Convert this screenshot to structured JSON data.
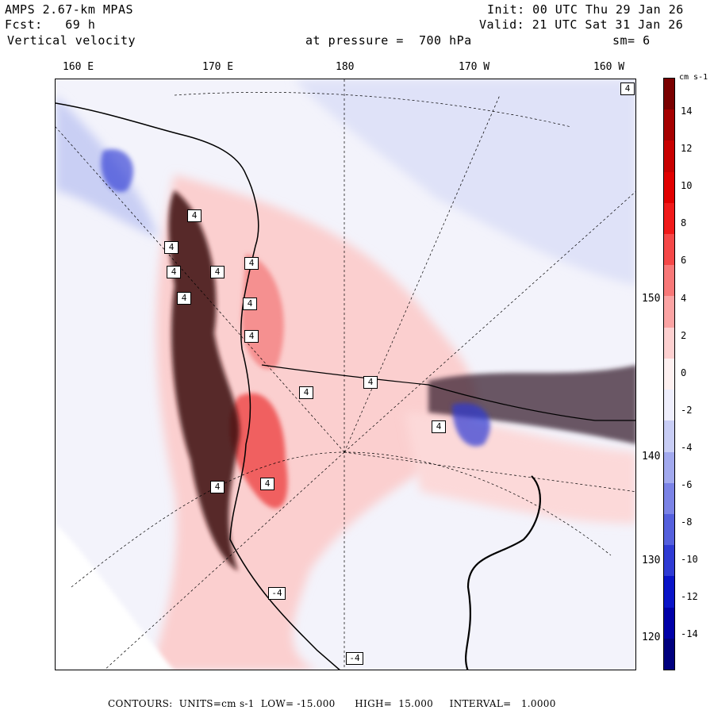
{
  "header": {
    "model": "AMPS 2.67-km MPAS",
    "forecast": "Fcst:   69 h",
    "field": "Vertical velocity",
    "init": "Init: 00 UTC Thu 29 Jan 26",
    "valid": "Valid: 21 UTC Sat 31 Jan 26",
    "pressure": "at pressure =  700 hPa",
    "smoothing": "sm= 6"
  },
  "longitude_labels": [
    "160 E",
    "170 E",
    "180",
    "170 W",
    "160 W"
  ],
  "latitude_labels": [
    "150 W",
    "140 W",
    "130 W",
    "120 W"
  ],
  "colorbar": {
    "units": "cm s-1",
    "ticks": [
      "14",
      "12",
      "10",
      "8",
      "6",
      "4",
      "2",
      "0",
      "-2",
      "-4",
      "-6",
      "-8",
      "-10",
      "-12",
      "-14"
    ],
    "colors": [
      "#7a0000",
      "#a50000",
      "#c80000",
      "#e10000",
      "#f01a1a",
      "#f54848",
      "#f87878",
      "#fba3a3",
      "#fdd0d0",
      "#fdf0f0",
      "#eeeefc",
      "#c8cdf5",
      "#a2a9ee",
      "#7b83e6",
      "#5560dd",
      "#2f3bd4",
      "#0a14c8",
      "#0000a8",
      "#00007e"
    ]
  },
  "highlow_labels": [
    "4",
    "4",
    "4",
    "4",
    "4",
    "4",
    "4",
    "4",
    "4",
    "4",
    "4",
    "4",
    "4",
    "4",
    "-4",
    "-4"
  ],
  "footer": "CONTOURS:  UNITS=cm s-1  LOW= -15.000      HIGH=  15.000     INTERVAL=   1.0000"
}
